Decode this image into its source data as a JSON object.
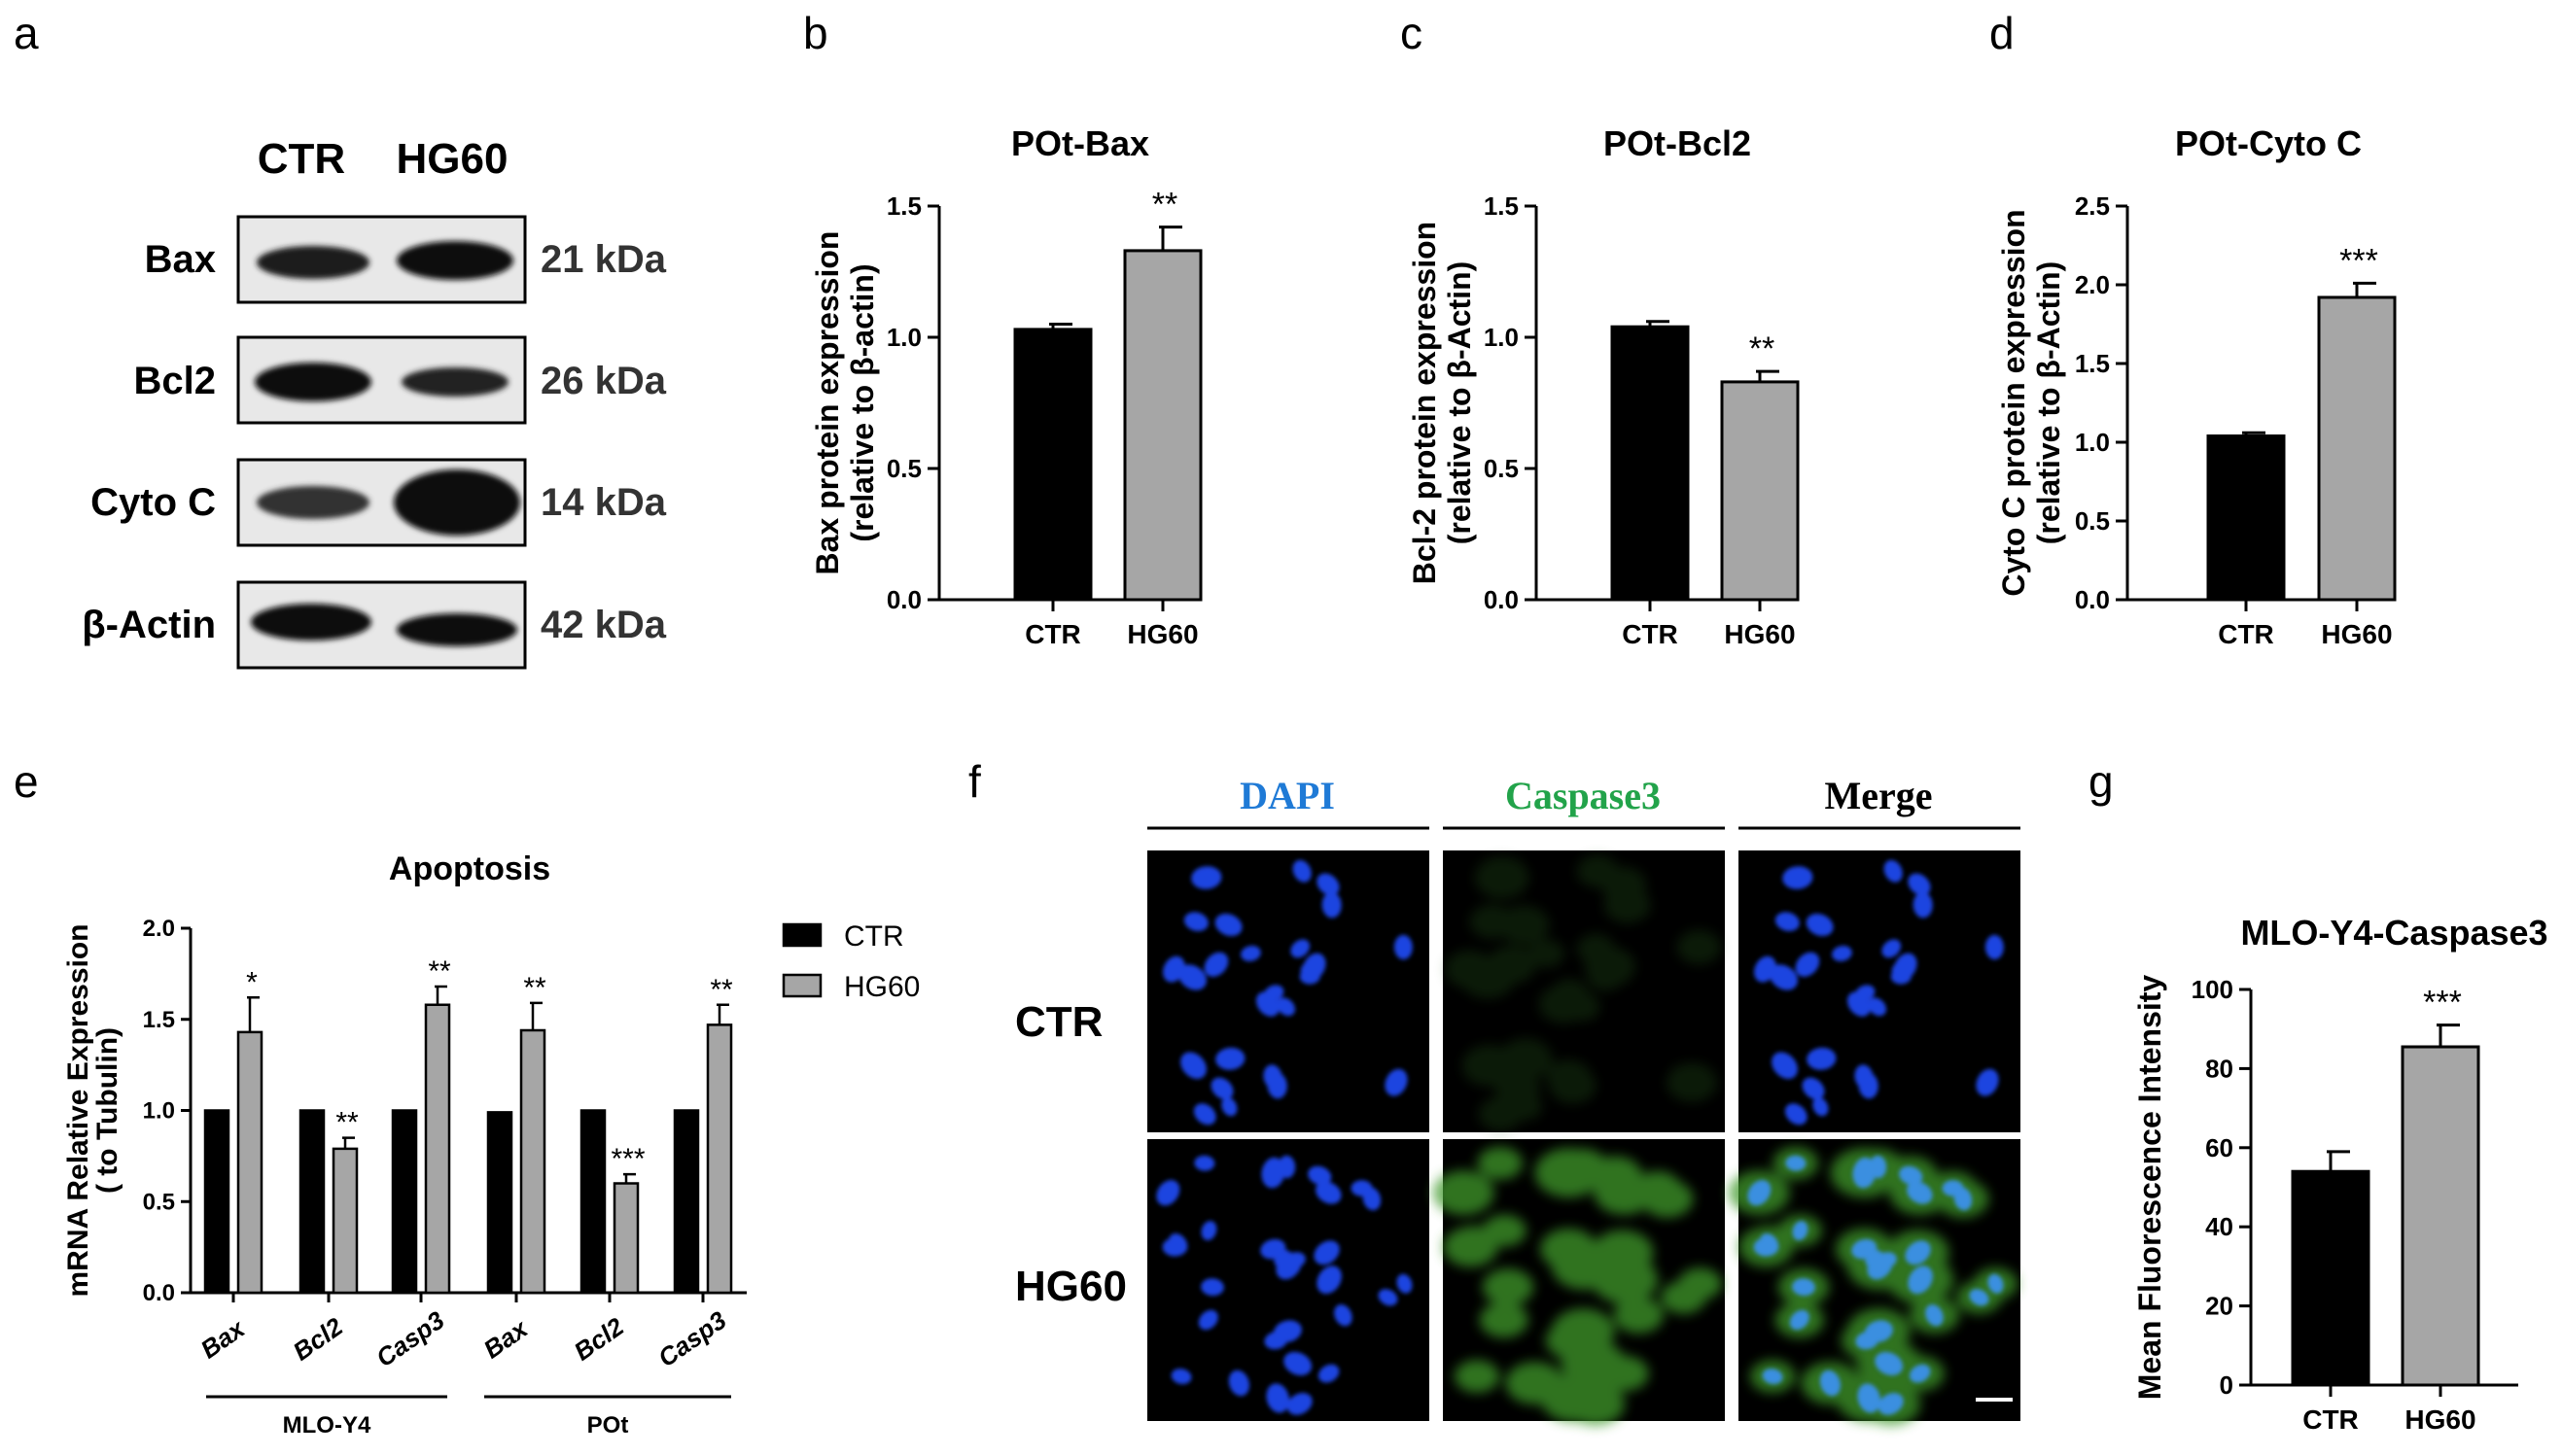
{
  "panels": {
    "a": {
      "letter": "a",
      "lanes": [
        "CTR",
        "HG60"
      ],
      "rows": [
        {
          "protein": "Bax",
          "kda": "21 kDa"
        },
        {
          "protein": "Bcl2",
          "kda": "26 kDa"
        },
        {
          "protein": "Cyto C",
          "kda": "14 kDa"
        },
        {
          "protein": "β-Actin",
          "kda": "42 kDa"
        }
      ]
    },
    "b": {
      "letter": "b"
    },
    "c": {
      "letter": "c"
    },
    "d": {
      "letter": "d"
    },
    "e": {
      "letter": "e"
    },
    "f": {
      "letter": "f",
      "columns": [
        "DAPI",
        "Caspase3",
        "Merge"
      ],
      "rows": [
        "CTR",
        "HG60"
      ],
      "colors": {
        "dapi": "#1f7ad6",
        "caspase": "#22a34a",
        "merge": "#000000"
      }
    },
    "g": {
      "letter": "g"
    }
  },
  "chart_data": [
    {
      "id": "b",
      "type": "bar",
      "title": "POt-Bax",
      "ylabel": [
        "Bax protein expression",
        "(relative to β-actin)"
      ],
      "categories": [
        "CTR",
        "HG60"
      ],
      "values": [
        1.03,
        1.33
      ],
      "errors": [
        0.02,
        0.09
      ],
      "significance": [
        "",
        "**"
      ],
      "ylim": [
        0,
        1.5
      ],
      "yticks": [
        "0.0",
        "0.5",
        "1.0",
        "1.5"
      ],
      "colors": [
        "#000000",
        "#a6a6a6"
      ]
    },
    {
      "id": "c",
      "type": "bar",
      "title": "POt-Bcl2",
      "ylabel": [
        "Bcl-2 protein expression",
        "(relative to β-Actin)"
      ],
      "categories": [
        "CTR",
        "HG60"
      ],
      "values": [
        1.04,
        0.83
      ],
      "errors": [
        0.02,
        0.04
      ],
      "significance": [
        "",
        "**"
      ],
      "ylim": [
        0,
        1.5
      ],
      "yticks": [
        "0.0",
        "0.5",
        "1.0",
        "1.5"
      ],
      "colors": [
        "#000000",
        "#a6a6a6"
      ]
    },
    {
      "id": "d",
      "type": "bar",
      "title": "POt-Cyto C",
      "ylabel": [
        "Cyto C protein expression",
        "(relative to β-Actin)"
      ],
      "categories": [
        "CTR",
        "HG60"
      ],
      "values": [
        1.04,
        1.92
      ],
      "errors": [
        0.02,
        0.09
      ],
      "significance": [
        "",
        "***"
      ],
      "ylim": [
        0,
        2.5
      ],
      "yticks": [
        "0.0",
        "0.5",
        "1.0",
        "1.5",
        "2.0",
        "2.5"
      ],
      "colors": [
        "#000000",
        "#a6a6a6"
      ]
    },
    {
      "id": "e",
      "type": "bar",
      "title": "Apoptosis",
      "ylabel": [
        "mRNA Relative Expression",
        "( to Tubulin)"
      ],
      "categories": [
        "Bax",
        "Bcl2",
        "Casp3",
        "Bax",
        "Bcl2",
        "Casp3"
      ],
      "groups": [
        {
          "name": "MLO-Y4",
          "span": [
            0,
            2
          ]
        },
        {
          "name": "POt",
          "span": [
            3,
            5
          ]
        }
      ],
      "series": [
        {
          "name": "CTR",
          "values": [
            1.0,
            1.0,
            1.0,
            0.99,
            1.0,
            1.0
          ],
          "errors": [
            0.01,
            0.01,
            0.01,
            0.01,
            0.01,
            0.01
          ],
          "color": "#000000"
        },
        {
          "name": "HG60",
          "values": [
            1.43,
            0.79,
            1.58,
            1.44,
            0.6,
            1.47
          ],
          "errors": [
            0.19,
            0.06,
            0.1,
            0.15,
            0.05,
            0.11
          ],
          "color": "#a6a6a6"
        }
      ],
      "significance": [
        "*",
        "**",
        "**",
        "**",
        "***",
        "**"
      ],
      "ylim": [
        0,
        2.0
      ],
      "yticks": [
        "0.0",
        "0.5",
        "1.0",
        "1.5",
        "2.0"
      ],
      "legend": "right"
    },
    {
      "id": "g",
      "type": "bar",
      "title": "MLO-Y4-Caspase3",
      "ylabel": [
        "Mean Fluorescence Intensity"
      ],
      "categories": [
        "CTR",
        "HG60"
      ],
      "values": [
        54,
        85.5
      ],
      "errors": [
        5,
        5.5
      ],
      "significance": [
        "",
        "***"
      ],
      "ylim": [
        0,
        100
      ],
      "yticks": [
        "0",
        "20",
        "40",
        "60",
        "80",
        "100"
      ],
      "colors": [
        "#000000",
        "#a6a6a6"
      ]
    }
  ]
}
